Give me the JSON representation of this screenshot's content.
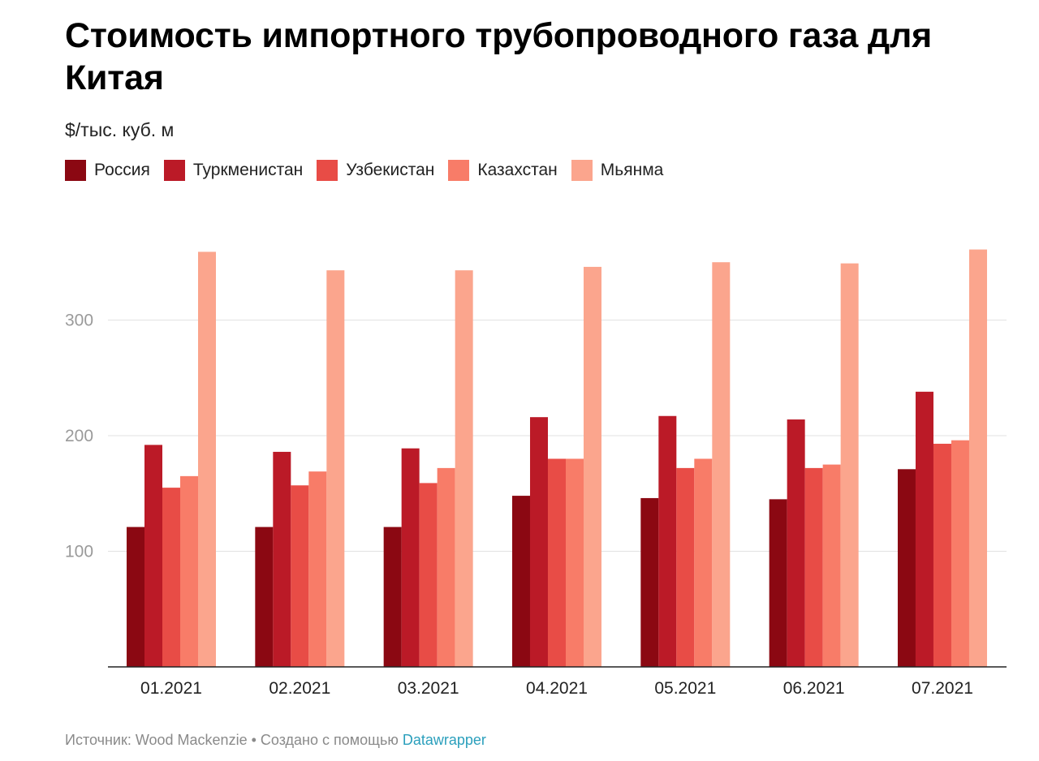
{
  "chart_data": {
    "type": "bar",
    "title": "Стоимость импортного трубопроводного газа для Китая",
    "subtitle": "$/тыс. куб. м",
    "categories": [
      "01.2021",
      "02.2021",
      "03.2021",
      "04.2021",
      "05.2021",
      "06.2021",
      "07.2021"
    ],
    "series": [
      {
        "name": "Россия",
        "color": "#8b0812",
        "values": [
          121,
          121,
          121,
          148,
          146,
          145,
          171
        ]
      },
      {
        "name": "Туркменистан",
        "color": "#bb1a27",
        "values": [
          192,
          186,
          189,
          216,
          217,
          214,
          238
        ]
      },
      {
        "name": "Узбекистан",
        "color": "#e84c46",
        "values": [
          155,
          157,
          159,
          180,
          172,
          172,
          193
        ]
      },
      {
        "name": "Казахстан",
        "color": "#f87c68",
        "values": [
          165,
          169,
          172,
          180,
          180,
          175,
          196
        ]
      },
      {
        "name": "Мьянма",
        "color": "#fba58d",
        "values": [
          359,
          343,
          343,
          346,
          350,
          349,
          361
        ]
      }
    ],
    "yticks": [
      100,
      200,
      300
    ],
    "ylim": [
      0,
      370
    ],
    "grid": true,
    "legend_position": "top-left"
  },
  "footer": {
    "source": "Источник: Wood Mackenzie • Создано с помощью ",
    "tool": "Datawrapper"
  }
}
